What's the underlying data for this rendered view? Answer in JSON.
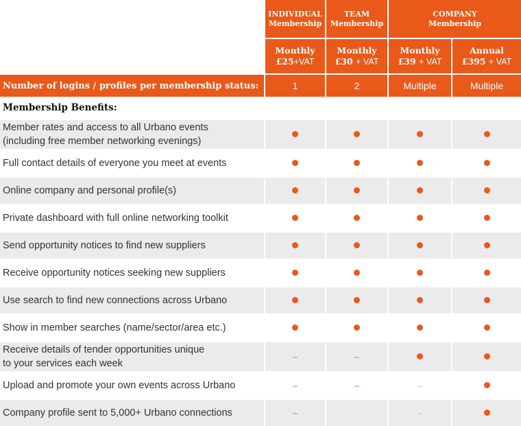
{
  "header": {
    "plans": [
      {
        "group_line1": "INDIVIDUAL",
        "group_line2": "Membership"
      },
      {
        "group_line1": "TEAM",
        "group_line2": "Membership"
      },
      {
        "group_line1": "COMPANY",
        "group_line2": "Membership"
      }
    ],
    "prices": [
      {
        "period": "Monthly",
        "amount": "£25",
        "vat": "+VAT"
      },
      {
        "period": "Monthly",
        "amount": "£30",
        "vat": "+ VAT"
      },
      {
        "period": "Monthly",
        "amount": "£39",
        "vat": "+ VAT"
      },
      {
        "period": "Annual",
        "amount": "£395",
        "vat": "+ VAT"
      }
    ]
  },
  "logins": {
    "label": "Number of logins / profiles per membership status:",
    "values": [
      "1",
      "2",
      "Multiple",
      "Multiple"
    ]
  },
  "section_title": "Membership Benefits:",
  "benefits": [
    {
      "label_line1": "Member rates and access to all Urbano events",
      "label_line2": "(including free member networking evenings)",
      "marks": [
        "dot",
        "dot",
        "dot",
        "dot"
      ]
    },
    {
      "label_line1": "Full contact details of everyone you meet at events",
      "label_line2": "",
      "marks": [
        "dot",
        "dot",
        "dot",
        "dot"
      ]
    },
    {
      "label_line1": "Online company and personal profile(s)",
      "label_line2": "",
      "marks": [
        "dot",
        "dot",
        "dot",
        "dot"
      ]
    },
    {
      "label_line1": "Private dashboard with full online networking toolkit",
      "label_line2": "",
      "marks": [
        "dot",
        "dot",
        "dot",
        "dot"
      ]
    },
    {
      "label_line1": "Send opportunity notices to find new suppliers",
      "label_line2": "",
      "marks": [
        "dot",
        "dot",
        "dot",
        "dot"
      ]
    },
    {
      "label_line1": "Receive opportunity notices seeking new suppliers",
      "label_line2": "",
      "marks": [
        "dot",
        "dot",
        "dot",
        "dot"
      ]
    },
    {
      "label_line1": "Use search to find new connections across Urbano",
      "label_line2": "",
      "marks": [
        "dot",
        "dot",
        "dot",
        "dot"
      ]
    },
    {
      "label_line1": "Show in member searches (name/sector/area etc.)",
      "label_line2": "",
      "marks": [
        "dot",
        "dot",
        "dot",
        "dot"
      ]
    },
    {
      "label_line1": "Receive details of tender opportunities unique",
      "label_line2": "to your services each week",
      "marks": [
        "dash",
        "dash",
        "dot",
        "dot"
      ]
    },
    {
      "label_line1": "Upload and promote your own events across Urbano",
      "label_line2": "",
      "marks": [
        "dash",
        "dash",
        "dash-light",
        "dot"
      ]
    },
    {
      "label_line1": "Company profile sent to 5,000+ Urbano connections",
      "label_line2": "",
      "marks": [
        "dash",
        "",
        "dash-light",
        "dot"
      ]
    }
  ],
  "mark_legend": {
    "dot": "included-dot-icon",
    "dash": "not-included-dash-icon"
  },
  "colors": {
    "accent": "#e8591a",
    "row_shade": "#ebebeb",
    "text": "#333333"
  }
}
